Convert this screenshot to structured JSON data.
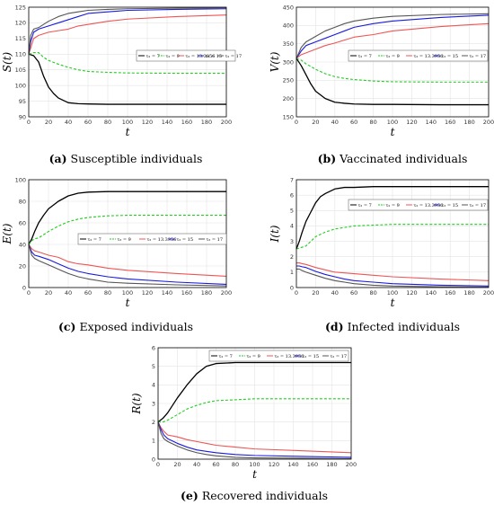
{
  "chart_data": [
    {
      "type": "line",
      "title": "",
      "xlabel": "t",
      "ylabel": "S(t)",
      "xlim": [
        0,
        200
      ],
      "ylim": [
        90,
        125
      ],
      "xticks": [
        "0",
        "20",
        "40",
        "60",
        "80",
        "100",
        "120",
        "140",
        "160",
        "180",
        "200"
      ],
      "yticks": [
        "90",
        "95",
        "100",
        "105",
        "110",
        "115",
        "120",
        "125"
      ],
      "grid": true,
      "legend_position": "right-middle",
      "caption_letter": "(a)",
      "caption_text": "Susceptible individuals",
      "series": [
        {
          "name": "τ₂ = 7",
          "color": "#000000",
          "dash": "solid",
          "x": [
            0,
            5,
            10,
            15,
            20,
            25,
            30,
            40,
            50,
            60,
            80,
            100,
            150,
            200
          ],
          "values": [
            110,
            109.5,
            107.5,
            103,
            99.5,
            97.5,
            96,
            94.5,
            94.2,
            94.1,
            94,
            94,
            94,
            94
          ]
        },
        {
          "name": "τ₂ = 9",
          "color": "#22cc22",
          "dash": "dashed",
          "x": [
            0,
            5,
            10,
            15,
            20,
            30,
            40,
            50,
            60,
            80,
            100,
            150,
            200
          ],
          "values": [
            110,
            110.5,
            110.5,
            109,
            108,
            106.8,
            105.8,
            105,
            104.5,
            104.2,
            104,
            103.9,
            103.9
          ]
        },
        {
          "name": "τ₂ = 13.3956",
          "color": "#ee5555",
          "dash": "solid",
          "x": [
            0,
            2,
            5,
            10,
            20,
            30,
            40,
            50,
            60,
            80,
            100,
            150,
            200
          ],
          "values": [
            110,
            112,
            115,
            116,
            117,
            117.5,
            118,
            119,
            119.5,
            120.5,
            121.2,
            122,
            122.5
          ]
        },
        {
          "name": "τ₂ = 15",
          "color": "#1a1add",
          "dash": "solid",
          "x": [
            0,
            2,
            5,
            10,
            20,
            30,
            40,
            50,
            60,
            80,
            100,
            150,
            200
          ],
          "values": [
            110,
            114,
            117,
            118,
            119,
            120,
            121,
            122,
            123,
            123.5,
            124,
            124.3,
            124.5
          ]
        },
        {
          "name": "τ₂ = 17",
          "color": "#555555",
          "dash": "solid",
          "x": [
            0,
            2,
            5,
            10,
            20,
            30,
            40,
            50,
            60,
            80,
            100,
            150,
            200
          ],
          "values": [
            110,
            116,
            118,
            118.5,
            120.5,
            122,
            123,
            123.5,
            124,
            124.3,
            124.5,
            124.7,
            124.8
          ]
        }
      ]
    },
    {
      "type": "line",
      "title": "",
      "xlabel": "t",
      "ylabel": "V(t)",
      "xlim": [
        0,
        200
      ],
      "ylim": [
        150,
        450
      ],
      "xticks": [
        "0",
        "20",
        "40",
        "60",
        "80",
        "100",
        "120",
        "140",
        "160",
        "180",
        "200"
      ],
      "yticks": [
        "150",
        "200",
        "250",
        "300",
        "350",
        "400",
        "450"
      ],
      "grid": true,
      "legend_position": "right-middle",
      "caption_letter": "(b)",
      "caption_text": "Vaccinated individuals",
      "series": [
        {
          "name": "τ₂ = 7",
          "color": "#000000",
          "dash": "solid",
          "x": [
            0,
            5,
            10,
            15,
            20,
            30,
            40,
            50,
            60,
            80,
            100,
            150,
            200
          ],
          "values": [
            310,
            290,
            265,
            240,
            220,
            200,
            190,
            187,
            185,
            184,
            184,
            183,
            183
          ]
        },
        {
          "name": "τ₂ = 9",
          "color": "#22cc22",
          "dash": "dashed",
          "x": [
            0,
            5,
            10,
            20,
            30,
            40,
            50,
            60,
            80,
            100,
            150,
            200
          ],
          "values": [
            310,
            305,
            295,
            280,
            268,
            260,
            255,
            252,
            248,
            246,
            245,
            245
          ]
        },
        {
          "name": "τ₂ = 13.3956",
          "color": "#ee5555",
          "dash": "solid",
          "x": [
            0,
            5,
            10,
            20,
            30,
            40,
            50,
            60,
            80,
            100,
            150,
            200
          ],
          "values": [
            310,
            320,
            325,
            335,
            345,
            352,
            360,
            368,
            375,
            385,
            397,
            405
          ]
        },
        {
          "name": "τ₂ = 15",
          "color": "#1a1add",
          "dash": "solid",
          "x": [
            0,
            5,
            10,
            20,
            30,
            40,
            50,
            60,
            80,
            100,
            150,
            200
          ],
          "values": [
            310,
            330,
            345,
            355,
            365,
            375,
            385,
            395,
            405,
            412,
            422,
            428
          ]
        },
        {
          "name": "τ₂ = 17",
          "color": "#555555",
          "dash": "solid",
          "x": [
            0,
            5,
            10,
            20,
            30,
            40,
            50,
            60,
            80,
            100,
            150,
            200
          ],
          "values": [
            310,
            340,
            355,
            370,
            385,
            395,
            405,
            412,
            420,
            425,
            430,
            432
          ]
        }
      ]
    },
    {
      "type": "line",
      "title": "",
      "xlabel": "t",
      "ylabel": "E(t)",
      "xlim": [
        0,
        200
      ],
      "ylim": [
        0,
        100
      ],
      "xticks": [
        "0",
        "20",
        "40",
        "60",
        "80",
        "100",
        "120",
        "140",
        "160",
        "180",
        "200"
      ],
      "yticks": [
        "0",
        "20",
        "40",
        "60",
        "80",
        "100"
      ],
      "grid": true,
      "legend_position": "right-middle",
      "caption_letter": "(c)",
      "caption_text": "Exposed individuals",
      "series": [
        {
          "name": "τ₂ = 7",
          "color": "#000000",
          "dash": "solid",
          "x": [
            0,
            3,
            6,
            10,
            15,
            20,
            30,
            40,
            50,
            60,
            80,
            100,
            150,
            200
          ],
          "values": [
            40,
            45,
            52,
            60,
            67,
            73,
            80,
            85,
            87.5,
            88.5,
            89,
            89,
            89,
            89
          ]
        },
        {
          "name": "τ₂ = 9",
          "color": "#22cc22",
          "dash": "dashed",
          "x": [
            0,
            5,
            10,
            20,
            30,
            40,
            50,
            60,
            80,
            100,
            150,
            200
          ],
          "values": [
            40,
            45,
            46,
            52,
            57,
            61,
            63.5,
            65,
            66.5,
            67,
            67,
            67
          ]
        },
        {
          "name": "τ₂ = 13.3956",
          "color": "#ee5555",
          "dash": "solid",
          "x": [
            0,
            3,
            6,
            10,
            20,
            30,
            40,
            50,
            60,
            80,
            100,
            150,
            200
          ],
          "values": [
            40,
            36,
            34,
            33,
            30,
            28,
            24,
            22,
            21,
            18,
            16,
            13,
            10.5
          ]
        },
        {
          "name": "τ₂ = 15",
          "color": "#1a1add",
          "dash": "solid",
          "x": [
            0,
            3,
            6,
            10,
            20,
            30,
            40,
            50,
            60,
            80,
            100,
            150,
            200
          ],
          "values": [
            40,
            33,
            30,
            29,
            26,
            22,
            18,
            15,
            13,
            10,
            8,
            5,
            3
          ]
        },
        {
          "name": "τ₂ = 17",
          "color": "#555555",
          "dash": "solid",
          "x": [
            0,
            3,
            6,
            10,
            20,
            30,
            40,
            50,
            60,
            80,
            100,
            150,
            200
          ],
          "values": [
            40,
            30,
            27,
            25,
            21,
            17,
            13,
            10,
            8,
            5,
            4,
            2.5,
            1.5
          ]
        }
      ]
    },
    {
      "type": "line",
      "title": "",
      "xlabel": "t",
      "ylabel": "I(t)",
      "xlim": [
        0,
        200
      ],
      "ylim": [
        0,
        7
      ],
      "xticks": [
        "0",
        "20",
        "40",
        "60",
        "80",
        "100",
        "120",
        "140",
        "160",
        "180",
        "200"
      ],
      "yticks": [
        "0",
        "1",
        "2",
        "3",
        "4",
        "5",
        "6",
        "7"
      ],
      "grid": true,
      "legend_position": "right-middle",
      "caption_letter": "(d)",
      "caption_text": "Infected individuals",
      "series": [
        {
          "name": "τ₂ = 7",
          "color": "#000000",
          "dash": "solid",
          "x": [
            0,
            3,
            6,
            10,
            15,
            20,
            25,
            30,
            40,
            50,
            60,
            80,
            100,
            150,
            200
          ],
          "values": [
            2.5,
            3.0,
            3.6,
            4.3,
            4.9,
            5.5,
            5.9,
            6.1,
            6.4,
            6.5,
            6.5,
            6.55,
            6.55,
            6.55,
            6.55
          ]
        },
        {
          "name": "τ₂ = 9",
          "color": "#22cc22",
          "dash": "dashed",
          "x": [
            0,
            5,
            10,
            15,
            20,
            30,
            40,
            50,
            60,
            80,
            100,
            150,
            200
          ],
          "values": [
            2.5,
            2.6,
            2.7,
            3.0,
            3.3,
            3.6,
            3.8,
            3.9,
            4.0,
            4.05,
            4.1,
            4.1,
            4.1
          ]
        },
        {
          "name": "τ₂ = 13.3956",
          "color": "#ee5555",
          "dash": "solid",
          "x": [
            0,
            3,
            6,
            10,
            20,
            30,
            40,
            50,
            60,
            80,
            100,
            150,
            200
          ],
          "values": [
            1.6,
            1.6,
            1.55,
            1.5,
            1.3,
            1.15,
            1.0,
            0.95,
            0.9,
            0.8,
            0.7,
            0.55,
            0.45
          ]
        },
        {
          "name": "τ₂ = 15",
          "color": "#1a1add",
          "dash": "solid",
          "x": [
            0,
            3,
            6,
            10,
            20,
            30,
            40,
            50,
            60,
            80,
            100,
            150,
            200
          ],
          "values": [
            1.4,
            1.4,
            1.35,
            1.3,
            1.05,
            0.85,
            0.7,
            0.55,
            0.45,
            0.35,
            0.25,
            0.15,
            0.1
          ]
        },
        {
          "name": "τ₂ = 17",
          "color": "#555555",
          "dash": "solid",
          "x": [
            0,
            3,
            6,
            10,
            20,
            30,
            40,
            50,
            60,
            80,
            100,
            150,
            200
          ],
          "values": [
            1.2,
            1.2,
            1.1,
            1.0,
            0.8,
            0.6,
            0.45,
            0.35,
            0.25,
            0.15,
            0.1,
            0.05,
            0.03
          ]
        }
      ]
    },
    {
      "type": "line",
      "title": "",
      "xlabel": "t",
      "ylabel": "R(t)",
      "xlim": [
        0,
        200
      ],
      "ylim": [
        0,
        6
      ],
      "xticks": [
        "0",
        "20",
        "40",
        "60",
        "80",
        "100",
        "120",
        "140",
        "160",
        "180",
        "200"
      ],
      "yticks": [
        "0",
        "1",
        "2",
        "3",
        "4",
        "5",
        "6"
      ],
      "grid": true,
      "legend_position": "top",
      "caption_letter": "(e)",
      "caption_text": "Recovered individuals",
      "series": [
        {
          "name": "τ₂ = 7",
          "color": "#000000",
          "dash": "solid",
          "x": [
            0,
            5,
            10,
            15,
            20,
            30,
            40,
            50,
            60,
            80,
            100,
            150,
            200
          ],
          "values": [
            2.0,
            2.2,
            2.5,
            2.9,
            3.3,
            4.0,
            4.6,
            5.0,
            5.15,
            5.2,
            5.2,
            5.2,
            5.2
          ]
        },
        {
          "name": "τ₂ = 9",
          "color": "#22cc22",
          "dash": "dashed",
          "x": [
            0,
            5,
            10,
            20,
            30,
            40,
            50,
            60,
            80,
            100,
            150,
            200
          ],
          "values": [
            2.0,
            2.0,
            2.1,
            2.4,
            2.7,
            2.9,
            3.05,
            3.15,
            3.2,
            3.25,
            3.25,
            3.25
          ]
        },
        {
          "name": "τ₂ = 13.3956",
          "color": "#ee5555",
          "dash": "solid",
          "x": [
            0,
            3,
            6,
            10,
            20,
            30,
            40,
            50,
            60,
            80,
            100,
            150,
            200
          ],
          "values": [
            2.0,
            1.7,
            1.5,
            1.3,
            1.2,
            1.05,
            0.95,
            0.85,
            0.75,
            0.65,
            0.55,
            0.45,
            0.35
          ]
        },
        {
          "name": "τ₂ = 15",
          "color": "#1a1add",
          "dash": "solid",
          "x": [
            0,
            3,
            6,
            10,
            20,
            30,
            40,
            50,
            60,
            80,
            100,
            150,
            200
          ],
          "values": [
            2.0,
            1.6,
            1.3,
            1.1,
            0.85,
            0.65,
            0.5,
            0.42,
            0.35,
            0.25,
            0.2,
            0.15,
            0.1
          ]
        },
        {
          "name": "τ₂ = 17",
          "color": "#555555",
          "dash": "solid",
          "x": [
            0,
            3,
            6,
            10,
            20,
            30,
            40,
            50,
            60,
            80,
            100,
            150,
            200
          ],
          "values": [
            2.0,
            1.4,
            1.1,
            0.95,
            0.7,
            0.5,
            0.35,
            0.25,
            0.18,
            0.1,
            0.07,
            0.05,
            0.03
          ]
        }
      ]
    }
  ]
}
